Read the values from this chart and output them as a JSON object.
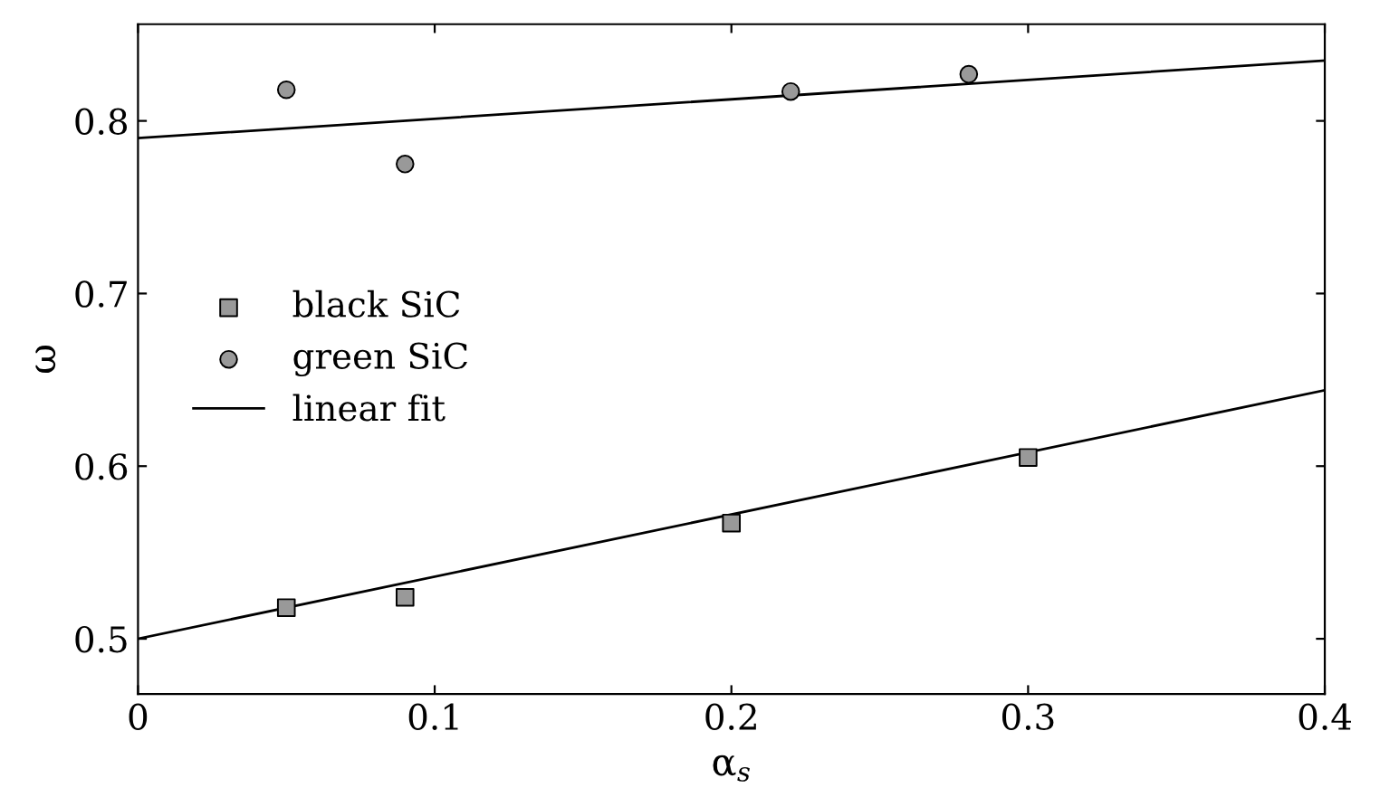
{
  "chart_data": {
    "type": "scatter",
    "xlabel": "α$_{s}$",
    "ylabel": "ω",
    "xlim": [
      0,
      0.4
    ],
    "ylim": [
      0.468,
      0.856
    ],
    "xticks": [
      0,
      0.1,
      0.2,
      0.3,
      0.4
    ],
    "yticks": [
      0.5,
      0.6,
      0.7,
      0.8
    ],
    "grid": false,
    "legend": "left",
    "series": [
      {
        "name": "black SiC",
        "marker": "square",
        "color": "#999999",
        "x": [
          0.05,
          0.09,
          0.2,
          0.3
        ],
        "values": [
          0.518,
          0.524,
          0.567,
          0.605
        ]
      },
      {
        "name": "green SiC",
        "marker": "circle",
        "color": "#999999",
        "x": [
          0.05,
          0.09,
          0.22,
          0.28
        ],
        "values": [
          0.818,
          0.775,
          0.817,
          0.827
        ]
      },
      {
        "name": "linear fit",
        "type": "line",
        "marker": "none",
        "color": "#000000",
        "x": [
          0,
          0.4
        ],
        "values": [
          0.5,
          0.644
        ]
      },
      {
        "type": "line",
        "marker": "none",
        "color": "#000000",
        "x": [
          0,
          0.4
        ],
        "values": [
          0.79,
          0.835
        ]
      }
    ]
  }
}
